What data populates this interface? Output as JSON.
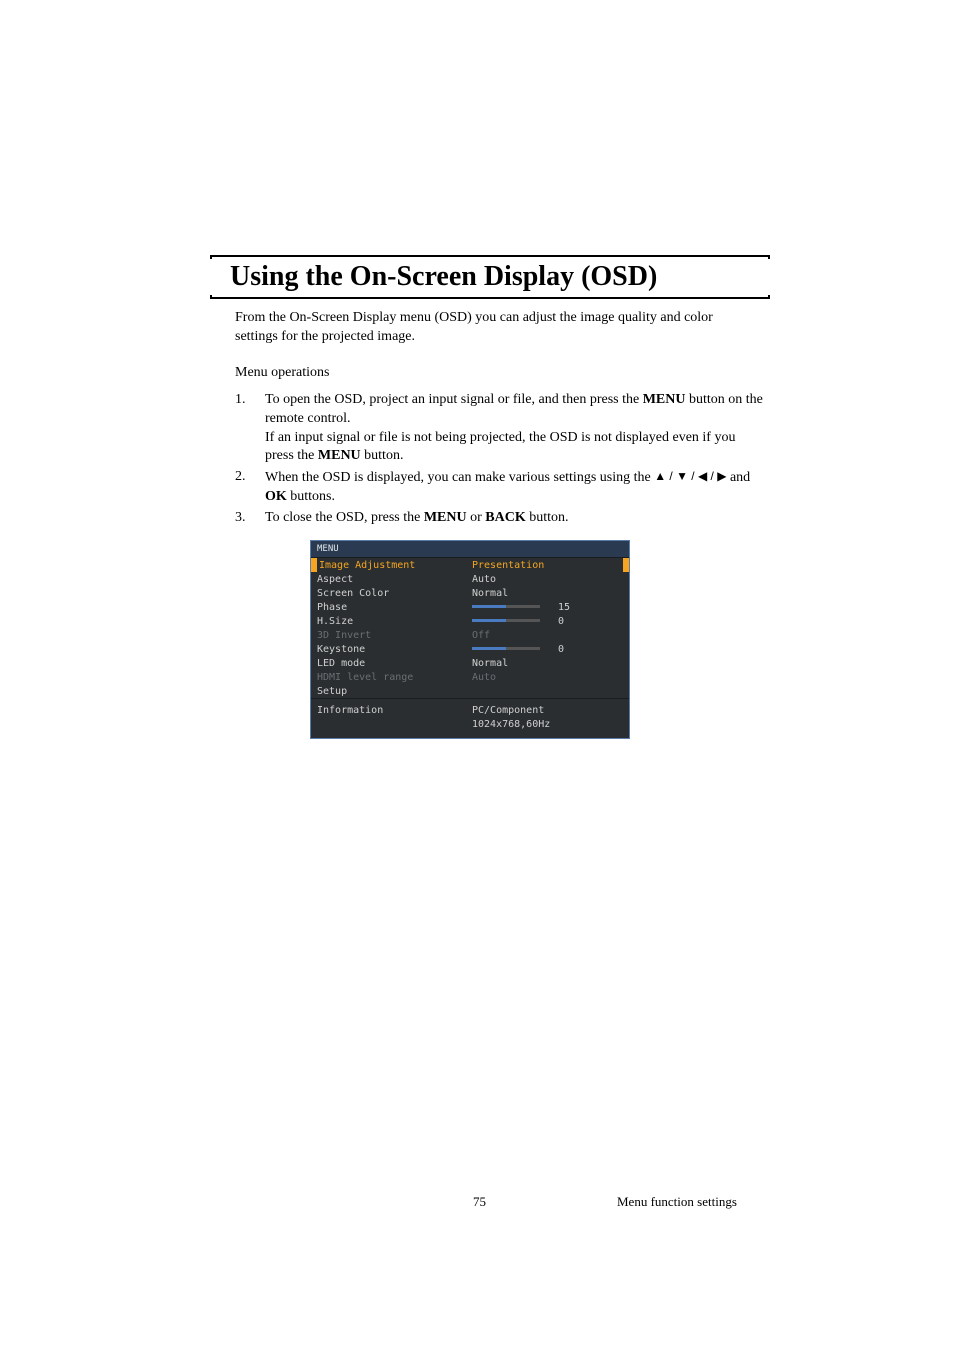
{
  "section_title": "Using the On-Screen Display (OSD)",
  "intro": "From the On-Screen Display menu (OSD) you can adjust the image quality and color settings for the projected image.",
  "subhead": "Menu operations",
  "steps": {
    "s1_num": "1.",
    "s1a": "To open the OSD, project an input signal or file, and then press the ",
    "s1b_bold": "MENU",
    "s1c": " button on the remote control.",
    "s1d": "If an input signal or file is not being projected, the OSD is not displayed even if you press the ",
    "s1e_bold": "MENU",
    "s1f": " button.",
    "s2_num": "2.",
    "s2a": "When the OSD is displayed, you can make various settings using the ",
    "s2_arrows": "▲ / ▼ / ◀ / ▶",
    "s2b": " and ",
    "s2c_bold": "OK",
    "s2d": " buttons.",
    "s3_num": "3.",
    "s3a": "To close the OSD, press the ",
    "s3b_bold": "MENU",
    "s3c": " or ",
    "s3d_bold": "BACK",
    "s3e": " button."
  },
  "osd": {
    "header": "MENU",
    "rows": [
      {
        "label": "Image Adjustment",
        "value": "Presentation",
        "selected": true,
        "type": "text"
      },
      {
        "label": "Aspect",
        "value": "Auto",
        "type": "text"
      },
      {
        "label": "Screen Color",
        "value": "Normal",
        "type": "text"
      },
      {
        "label": "Phase",
        "value": "15",
        "type": "slider",
        "fill": 50
      },
      {
        "label": "H.Size",
        "value": "0",
        "type": "slider",
        "fill": 50
      },
      {
        "label": "3D Invert",
        "value": "Off",
        "type": "text",
        "disabled": true
      },
      {
        "label": "Keystone",
        "value": "0",
        "type": "slider",
        "fill": 50
      },
      {
        "label": "LED mode",
        "value": "Normal",
        "type": "text"
      },
      {
        "label": "HDMI level range",
        "value": "Auto",
        "type": "text",
        "disabled": true
      },
      {
        "label": "Setup",
        "value": "",
        "type": "text"
      }
    ],
    "info_label": "Information",
    "info_val1": "PC/Component",
    "info_val2": "1024x768,60Hz",
    "colors": {
      "border": "#5a7ca8",
      "bg": "#2a2e30",
      "header_bg": "#2a3a50",
      "text": "#d0d0d0",
      "disabled": "#6a6e72",
      "highlight": "#f5a521",
      "slider_track": "#555555",
      "slider_fill": "#4a7ac0"
    }
  },
  "footer": {
    "page": "75",
    "chapter": "Menu function settings"
  }
}
